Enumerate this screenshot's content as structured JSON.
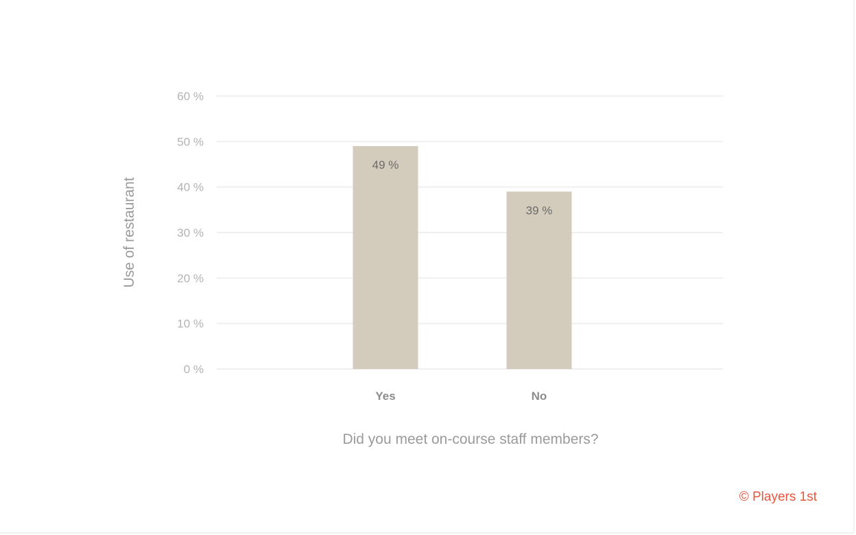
{
  "chart_data": {
    "type": "bar",
    "title": "",
    "categories": [
      "Yes",
      "No"
    ],
    "values": [
      49,
      39
    ],
    "value_labels": [
      "49 %",
      "39 %"
    ],
    "xlabel": "Did you meet on-course staff members?",
    "ylabel": "Use of restaurant",
    "ylim": [
      0,
      60
    ],
    "yticks": [
      0,
      10,
      20,
      30,
      40,
      50,
      60
    ],
    "ytick_labels": [
      "0 %",
      "10 %",
      "20 %",
      "30 %",
      "40 %",
      "50 %",
      "60 %"
    ],
    "grid": true,
    "legend": "none",
    "bar_color": "#d3cbbb",
    "grid_color": "#efefef"
  },
  "credit": {
    "text": "© Players 1st",
    "color": "#e8553e"
  }
}
